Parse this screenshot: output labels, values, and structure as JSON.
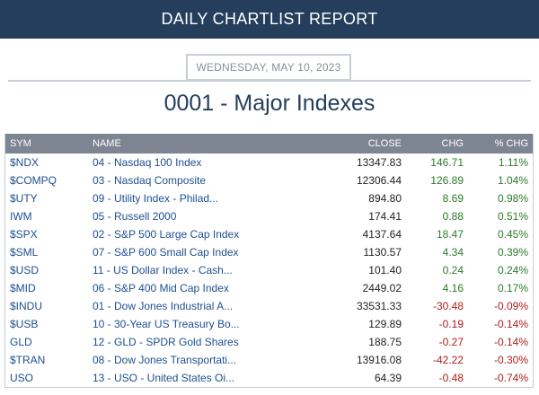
{
  "header": {
    "title": "DAILY CHARTLIST REPORT"
  },
  "report": {
    "date": "WEDNESDAY, MAY 10, 2023",
    "title": "0001 - Major Indexes"
  },
  "table": {
    "columns": {
      "sym": "SYM",
      "name": "NAME",
      "close": "CLOSE",
      "chg": "CHG",
      "pct": "% CHG"
    },
    "colors": {
      "positive": "#2b7a2b",
      "negative": "#b01c1c",
      "link": "#1d4f91"
    },
    "rows": [
      {
        "sym": "$NDX",
        "name": "04 - Nasdaq 100 Index",
        "close": "13347.83",
        "chg": "146.71",
        "pct": "1.11%"
      },
      {
        "sym": "$COMPQ",
        "name": "03 - Nasdaq Composite",
        "close": "12306.44",
        "chg": "126.89",
        "pct": "1.04%"
      },
      {
        "sym": "$UTY",
        "name": "09 - Utility Index - Philad...",
        "close": "894.80",
        "chg": "8.69",
        "pct": "0.98%"
      },
      {
        "sym": "IWM",
        "name": "05 - Russell 2000",
        "close": "174.41",
        "chg": "0.88",
        "pct": "0.51%"
      },
      {
        "sym": "$SPX",
        "name": "02 - S&P 500 Large Cap Index",
        "close": "4137.64",
        "chg": "18.47",
        "pct": "0.45%"
      },
      {
        "sym": "$SML",
        "name": "07 - S&P 600 Small Cap Index",
        "close": "1130.57",
        "chg": "4.34",
        "pct": "0.39%"
      },
      {
        "sym": "$USD",
        "name": "11 - US Dollar Index - Cash...",
        "close": "101.40",
        "chg": "0.24",
        "pct": "0.24%"
      },
      {
        "sym": "$MID",
        "name": "06 - S&P 400 Mid Cap Index",
        "close": "2449.02",
        "chg": "4.16",
        "pct": "0.17%"
      },
      {
        "sym": "$INDU",
        "name": "01 - Dow Jones Industrial A...",
        "close": "33531.33",
        "chg": "-30.48",
        "pct": "-0.09%"
      },
      {
        "sym": "$USB",
        "name": "10 - 30-Year US Treasury Bo...",
        "close": "129.89",
        "chg": "-0.19",
        "pct": "-0.14%"
      },
      {
        "sym": "GLD",
        "name": "12 - GLD - SPDR Gold Shares",
        "close": "188.75",
        "chg": "-0.27",
        "pct": "-0.14%"
      },
      {
        "sym": "$TRAN",
        "name": "08 - Dow Jones Transportati...",
        "close": "13916.08",
        "chg": "-42.22",
        "pct": "-0.30%"
      },
      {
        "sym": "USO",
        "name": "13 - USO - United States Oi...",
        "close": "64.39",
        "chg": "-0.48",
        "pct": "-0.74%"
      }
    ]
  }
}
